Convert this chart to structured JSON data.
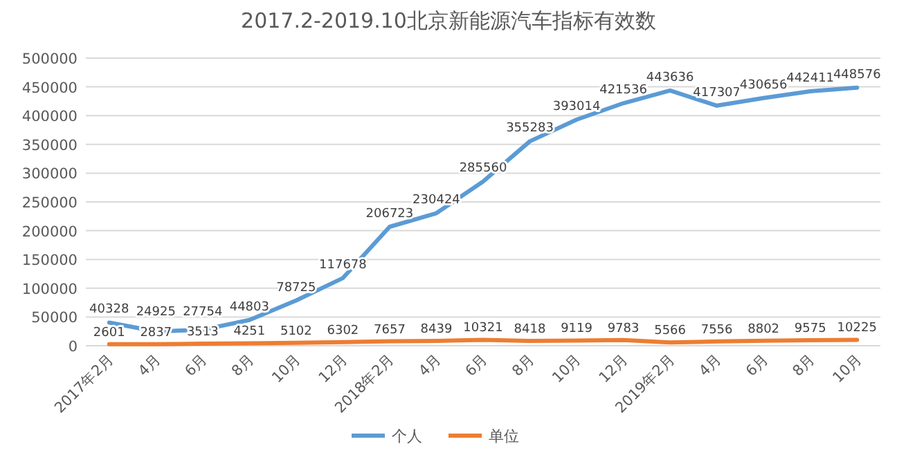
{
  "chart_data": {
    "type": "line",
    "title": "2017.2-2019.10北京新能源汽车指标有效数",
    "categories": [
      "2017年2月",
      "4月",
      "6月",
      "8月",
      "10月",
      "12月",
      "2018年2月",
      "4月",
      "6月",
      "8月",
      "10月",
      "12月",
      "2019年2月",
      "4月",
      "6月",
      "8月",
      "10月"
    ],
    "series": [
      {
        "name": "个人",
        "color": "#5b9bd5",
        "values": [
          40328,
          24925,
          27754,
          44803,
          78725,
          117678,
          206723,
          230424,
          285560,
          355283,
          393014,
          421536,
          443636,
          417307,
          430656,
          442411,
          448576
        ]
      },
      {
        "name": "单位",
        "color": "#ed7d31",
        "values": [
          2601,
          2837,
          3513,
          4251,
          5102,
          6302,
          7657,
          8439,
          10321,
          8418,
          9119,
          9783,
          5566,
          7556,
          8802,
          9575,
          10225
        ]
      }
    ],
    "ylim": [
      0,
      500000
    ],
    "yticks": [
      0,
      50000,
      100000,
      150000,
      200000,
      250000,
      300000,
      350000,
      400000,
      450000,
      500000
    ],
    "grid": "y",
    "legend": "bottom",
    "data_labels": true,
    "marker": "none",
    "line_style": "solid"
  }
}
